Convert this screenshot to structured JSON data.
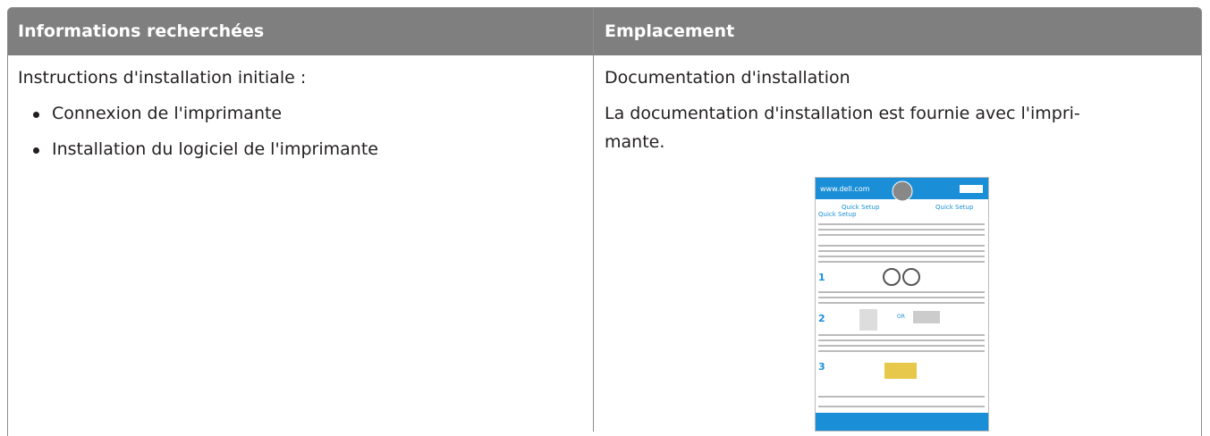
{
  "table": {
    "header": [
      "Informations recherchées",
      "Emplacement"
    ],
    "rows": [
      [
        {
          "text": "Instructions d'installation initiale :",
          "bullets": [
            "Connexion de l'imprimante",
            "Installation du logiciel de l'imprimante"
          ]
        },
        {
          "title": "Documentation d'installation",
          "paragraph": [
            "La documentation d'installation est fournie avec l'impri-",
            "mante."
          ],
          "image": {
            "site": "www.dell.com",
            "heading": "Quick Setup",
            "steps": [
              "1",
              "2",
              "3"
            ],
            "or": "OR"
          }
        }
      ]
    ]
  }
}
